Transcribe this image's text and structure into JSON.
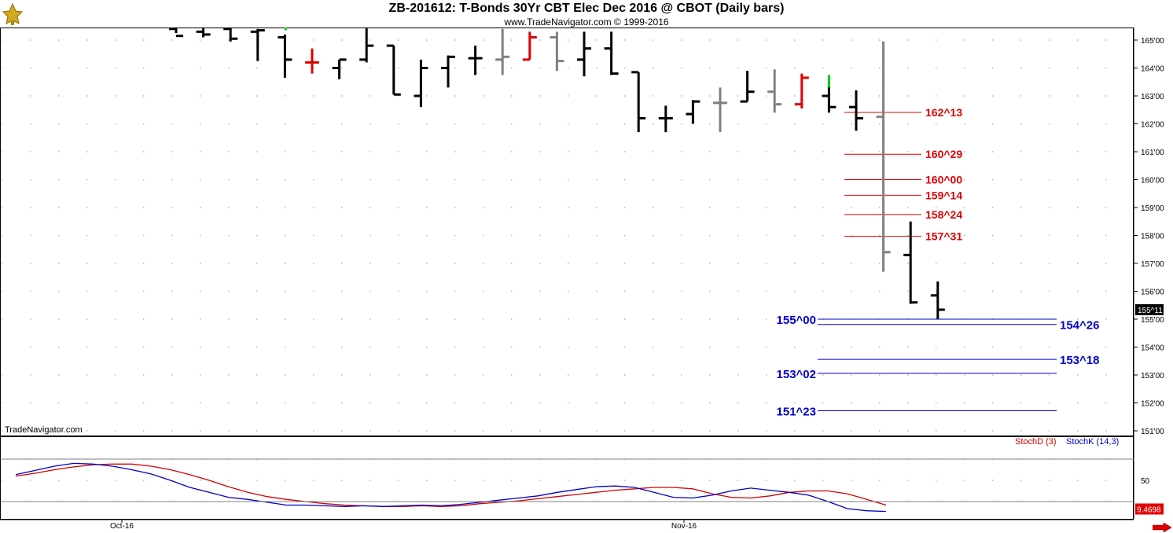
{
  "header": {
    "title": "ZB-201612:  T-Bonds 30Yr CBT Elec Dec 2016 @ CBOT  (Daily bars)",
    "copyright": "www.TradeNavigator.com © 1999-2016"
  },
  "watermark": "TradeNavigator.com",
  "logo_icon": "golden-bull-logo-icon",
  "nav_icon": "red-right-arrow-icon",
  "colors": {
    "bar_black": "#000000",
    "bar_gray": "#808080",
    "bar_red": "#e00000",
    "bar_green": "#00cc00",
    "level_red": "#e00000",
    "level_blue": "#0000cc",
    "stoch_d": "#d40000",
    "stoch_k": "#0000cc"
  },
  "chart_data": [
    {
      "type": "ohlc",
      "title": "ZB-201612:  T-Bonds 30Yr CBT Elec Dec 2016 @ CBOT  (Daily bars)",
      "x_tick_labels": [
        "Oct-16",
        "Nov-16"
      ],
      "y_tick_labels": [
        "151'00",
        "152'00",
        "153'00",
        "154'00",
        "155'00",
        "156'00",
        "157'00",
        "158'00",
        "159'00",
        "160'00",
        "161'00",
        "162'00",
        "163'00",
        "164'00",
        "165'00"
      ],
      "y_ticks": [
        151,
        152,
        153,
        154,
        155,
        156,
        157,
        158,
        159,
        160,
        161,
        162,
        163,
        164,
        165
      ],
      "ylim": [
        150.75,
        165.2
      ],
      "grid": true,
      "last_price_label": "155^11",
      "last_price": 155.34,
      "bars": [
        {
          "o": 165.4,
          "h": 165.6,
          "l": 165.25,
          "c": 165.15,
          "color": "black"
        },
        {
          "o": 165.3,
          "h": 165.6,
          "l": 165.1,
          "c": 165.2,
          "color": "black"
        },
        {
          "o": 165.4,
          "h": 165.5,
          "l": 164.95,
          "c": 165.05,
          "color": "black"
        },
        {
          "o": 165.3,
          "h": 165.4,
          "l": 164.25,
          "c": 165.35,
          "color": "black"
        },
        {
          "o": 165.1,
          "h": 165.2,
          "l": 163.65,
          "c": 164.3,
          "color": "black"
        },
        {
          "o": 164.2,
          "h": 164.7,
          "l": 163.8,
          "c": 164.2,
          "color": "red"
        },
        {
          "o": 164.0,
          "h": 164.3,
          "l": 163.6,
          "c": 164.3,
          "color": "black"
        },
        {
          "o": 164.3,
          "h": 165.5,
          "l": 164.2,
          "c": 164.8,
          "color": "black"
        },
        {
          "o": 164.8,
          "h": 164.8,
          "l": 163.05,
          "c": 163.05,
          "color": "black"
        },
        {
          "o": 163.0,
          "h": 164.3,
          "l": 162.6,
          "c": 164.0,
          "color": "black"
        },
        {
          "o": 164.0,
          "h": 164.45,
          "l": 163.3,
          "c": 164.4,
          "color": "black"
        },
        {
          "o": 164.35,
          "h": 164.8,
          "l": 163.75,
          "c": 164.35,
          "color": "black"
        },
        {
          "o": 164.3,
          "h": 165.4,
          "l": 163.75,
          "c": 164.4,
          "color": "gray"
        },
        {
          "o": 164.3,
          "h": 165.3,
          "l": 164.3,
          "c": 165.1,
          "color": "red"
        },
        {
          "o": 165.1,
          "h": 165.3,
          "l": 163.9,
          "c": 164.25,
          "color": "gray"
        },
        {
          "o": 164.3,
          "h": 165.3,
          "l": 163.7,
          "c": 164.7,
          "color": "black"
        },
        {
          "o": 164.7,
          "h": 165.3,
          "l": 163.75,
          "c": 163.8,
          "color": "black"
        },
        {
          "o": 163.85,
          "h": 163.85,
          "l": 161.7,
          "c": 162.2,
          "color": "black"
        },
        {
          "o": 162.2,
          "h": 162.65,
          "l": 161.7,
          "c": 162.2,
          "color": "black"
        },
        {
          "o": 162.35,
          "h": 162.85,
          "l": 162.0,
          "c": 162.8,
          "color": "black"
        },
        {
          "o": 162.75,
          "h": 163.3,
          "l": 161.7,
          "c": 162.75,
          "color": "gray"
        },
        {
          "o": 162.8,
          "h": 163.9,
          "l": 162.8,
          "c": 163.15,
          "color": "black"
        },
        {
          "o": 163.15,
          "h": 163.95,
          "l": 162.4,
          "c": 162.7,
          "color": "gray"
        },
        {
          "o": 162.7,
          "h": 163.8,
          "l": 162.55,
          "c": 163.65,
          "color": "red"
        },
        {
          "o": 163.0,
          "h": 163.5,
          "l": 162.4,
          "c": 162.6,
          "color": "black"
        },
        {
          "o": 162.6,
          "h": 163.2,
          "l": 161.75,
          "c": 162.2,
          "color": "black"
        },
        {
          "o": 162.25,
          "h": 164.95,
          "l": 156.7,
          "c": 157.4,
          "color": "gray"
        },
        {
          "o": 157.3,
          "h": 158.5,
          "l": 155.55,
          "c": 155.6,
          "color": "black"
        },
        {
          "o": 155.85,
          "h": 156.35,
          "l": 155.0,
          "c": 155.34,
          "color": "black"
        }
      ],
      "green_marks": [
        {
          "bar": 4,
          "price": 165.35
        },
        {
          "bar": 24,
          "price": 163.3
        }
      ],
      "levels": [
        {
          "label": "162^13",
          "value": 162.41,
          "color": "red"
        },
        {
          "label": "160^29",
          "value": 160.91,
          "color": "red"
        },
        {
          "label": "160^00",
          "value": 160.0,
          "color": "red"
        },
        {
          "label": "159^14",
          "value": 159.44,
          "color": "red"
        },
        {
          "label": "158^24",
          "value": 158.75,
          "color": "red"
        },
        {
          "label": "157^31",
          "value": 157.97,
          "color": "red"
        },
        {
          "label": "155^00",
          "value": 155.0,
          "color": "blue",
          "side": "left"
        },
        {
          "label": "154^26",
          "value": 154.81,
          "color": "blue",
          "side": "right"
        },
        {
          "label": "153^18",
          "value": 153.56,
          "color": "blue",
          "side": "right"
        },
        {
          "label": "153^02",
          "value": 153.06,
          "color": "blue",
          "side": "left"
        },
        {
          "label": "151^23",
          "value": 151.72,
          "color": "blue",
          "side": "left"
        }
      ]
    },
    {
      "type": "line",
      "title": "",
      "ylim": [
        0,
        100
      ],
      "y_tick_labels": [
        "50"
      ],
      "hlines": [
        80,
        20
      ],
      "last_value_label": "9.4698",
      "series": [
        {
          "name": "StochD (3)",
          "color": "#d40000",
          "values": [
            56,
            60,
            65,
            69,
            72,
            73,
            73,
            70,
            65,
            58,
            50,
            41,
            33,
            27,
            23,
            20,
            17,
            15,
            14,
            13,
            13,
            14,
            13,
            14,
            17,
            19,
            21,
            24,
            27,
            30,
            33,
            36,
            38,
            40,
            40,
            38,
            31,
            26,
            25,
            28,
            33,
            35,
            35,
            31,
            23,
            15
          ]
        },
        {
          "name": "StochK (14,3)",
          "color": "#0000cc",
          "values": [
            58,
            64,
            70,
            74,
            73,
            70,
            65,
            59,
            50,
            40,
            33,
            26,
            23,
            19,
            15,
            15,
            14,
            13,
            14,
            13,
            14,
            15,
            14,
            16,
            19,
            22,
            25,
            28,
            33,
            37,
            41,
            42,
            40,
            33,
            26,
            25,
            29,
            35,
            39,
            36,
            33,
            29,
            20,
            10,
            7,
            6
          ]
        }
      ]
    }
  ]
}
